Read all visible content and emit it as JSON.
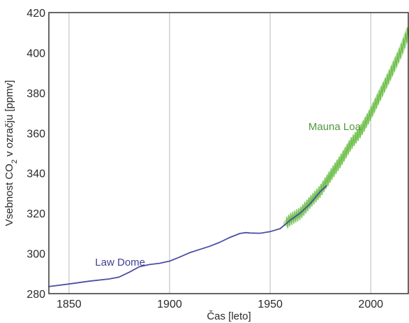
{
  "chart_data": {
    "type": "line",
    "xlabel": "Čas [leto]",
    "ylabel": {
      "prefix": "Vsebnost CO",
      "subscript": "2",
      "suffix": " v ozračju [ppmv]"
    },
    "xlim": [
      1840,
      2019
    ],
    "ylim": [
      280,
      420
    ],
    "xticks": [
      1850,
      1900,
      1950,
      2000
    ],
    "yticks": [
      280,
      300,
      320,
      340,
      360,
      380,
      400,
      420
    ],
    "grid": {
      "x": true,
      "y": false
    },
    "legend": "none",
    "series": [
      {
        "name": "Law Dome",
        "color": "#4a4fa3",
        "x": [
          1840,
          1850,
          1860,
          1870,
          1875,
          1880,
          1885,
          1890,
          1895,
          1900,
          1905,
          1910,
          1915,
          1920,
          1925,
          1930,
          1935,
          1938,
          1940,
          1945,
          1950,
          1955,
          1960,
          1965,
          1970,
          1975,
          1978
        ],
        "y": [
          283.5,
          284.8,
          286.2,
          287.3,
          288.3,
          290.7,
          293.4,
          294.5,
          295.1,
          296.2,
          298.2,
          300.4,
          302.0,
          303.6,
          305.6,
          308.0,
          310.0,
          310.4,
          310.2,
          310.1,
          310.9,
          312.4,
          316.6,
          320.2,
          324.9,
          331.0,
          333.7
        ]
      },
      {
        "name": "Mauna Loa",
        "color": "#6fc04b",
        "x": [
          1958,
          1960,
          1965,
          1970,
          1975,
          1980,
          1985,
          1990,
          1995,
          2000,
          2005,
          2010,
          2015,
          2019
        ],
        "y": [
          315.0,
          316.9,
          320.0,
          325.7,
          331.1,
          338.8,
          346.1,
          354.4,
          360.9,
          369.7,
          379.8,
          389.9,
          400.8,
          411.4
        ]
      }
    ]
  }
}
